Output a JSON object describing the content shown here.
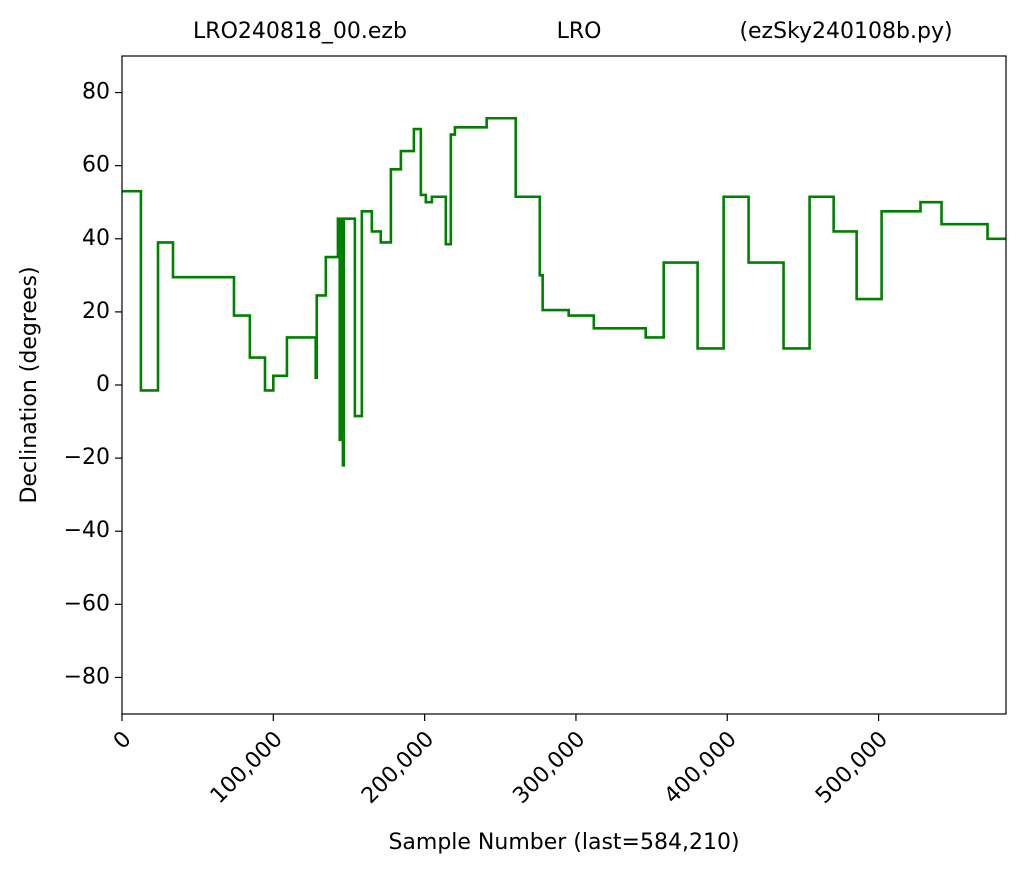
{
  "chart_data": {
    "type": "step",
    "title": [
      "LRO240818_00.ezb",
      "LRO",
      "(ezSky240108b.py)"
    ],
    "xlabel": "Sample Number (last=584,210)",
    "ylabel": "Declination (degrees)",
    "color": "#008000",
    "xlim": [
      0,
      584210
    ],
    "ylim": [
      -90,
      90
    ],
    "xticks": [
      0,
      {
        "value": 100000,
        "label": "100,000"
      },
      {
        "value": 200000,
        "label": "200,000"
      },
      {
        "value": 300000,
        "label": "300,000"
      },
      {
        "value": 400000,
        "label": "400,000"
      },
      {
        "value": 500000,
        "label": "500,000"
      }
    ],
    "yticks": [
      {
        "value": -80,
        "label": "−80"
      },
      {
        "value": -60,
        "label": "−60"
      },
      {
        "value": -40,
        "label": "−40"
      },
      {
        "value": -20,
        "label": "−20"
      },
      0,
      20,
      40,
      60,
      80
    ],
    "x": [
      0,
      12500,
      23800,
      33700,
      74000,
      84500,
      94500,
      100000,
      109000,
      128000,
      128700,
      134700,
      142700,
      143900,
      144600,
      146000,
      146600,
      153900,
      158500,
      165100,
      171000,
      177700,
      184300,
      192900,
      197500,
      200800,
      204800,
      214000,
      217300,
      220000,
      241000,
      260200,
      276100,
      278000,
      295200,
      311800,
      346100,
      358000,
      380400,
      397600,
      414100,
      437200,
      454400,
      470300,
      485500,
      502000,
      527700,
      541600,
      572000,
      584210
    ],
    "values": [
      53,
      -1.5,
      39,
      29.5,
      19,
      7.5,
      -1.5,
      2.5,
      13,
      2,
      24.5,
      35,
      45.5,
      -15,
      45.5,
      -22,
      45.5,
      -8.5,
      47.5,
      42,
      39,
      59,
      64,
      70,
      52,
      50,
      51.5,
      38.5,
      68.5,
      70.5,
      73,
      51.5,
      30,
      20.5,
      19,
      15.5,
      13,
      33.5,
      10,
      51.5,
      33.5,
      10,
      51.5,
      42,
      23.5,
      47.5,
      50,
      44,
      40,
      40
    ]
  }
}
